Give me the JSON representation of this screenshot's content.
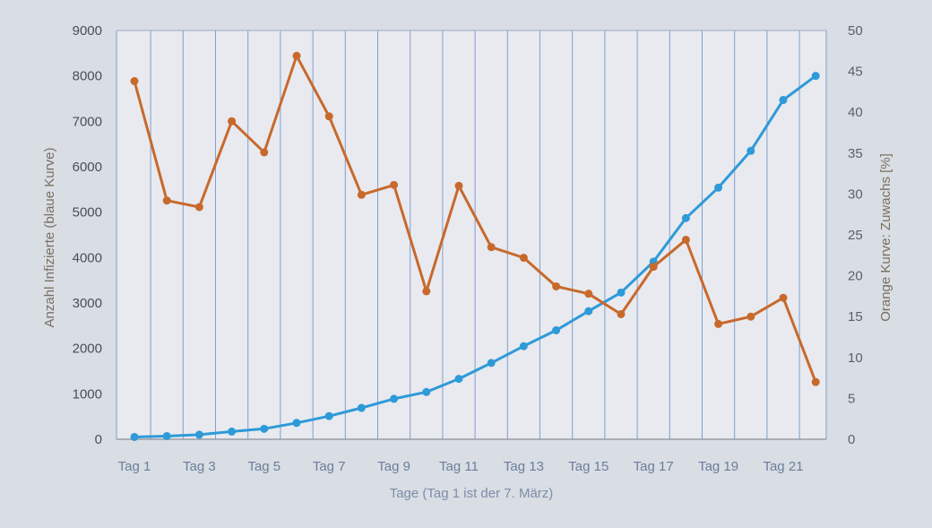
{
  "chart_data": {
    "type": "line",
    "xlabel": "Tage (Tag 1 ist der 7. März)",
    "ylabel": "Anzahl Infizierte (blaue Kurve)",
    "y2label": "Orange Kurve: Zuwachs [%]",
    "categories": [
      "Tag 1",
      "Tag 2",
      "Tag 3",
      "Tag 4",
      "Tag 5",
      "Tag 6",
      "Tag 7",
      "Tag 8",
      "Tag 9",
      "Tag 10",
      "Tag 11",
      "Tag 12",
      "Tag 13",
      "Tag 14",
      "Tag 15",
      "Tag 16",
      "Tag 17",
      "Tag 18",
      "Tag 19",
      "Tag 20",
      "Tag 21",
      "Tag 22"
    ],
    "x_tick_labels": [
      "Tag 1",
      "Tag 3",
      "Tag 5",
      "Tag 7",
      "Tag 9",
      "Tag 11",
      "Tag 13",
      "Tag 15",
      "Tag 17",
      "Tag 19",
      "Tag 21"
    ],
    "ylim": [
      0,
      9000
    ],
    "y_ticks": [
      "0",
      "1000",
      "2000",
      "3000",
      "4000",
      "5000",
      "6000",
      "7000",
      "8000",
      "9000"
    ],
    "y2lim": [
      0,
      50
    ],
    "y2_ticks": [
      "0",
      "5",
      "10",
      "15",
      "20",
      "25",
      "30",
      "35",
      "40",
      "45",
      "50"
    ],
    "grid": "vertical",
    "series": [
      {
        "axis": "left",
        "color": "#2e9ad8",
        "values": [
          50,
          70,
          100,
          170,
          230,
          360,
          510,
          690,
          890,
          1040,
          1330,
          1680,
          2050,
          2400,
          2820,
          3230,
          3910,
          4870,
          5540,
          6350,
          7470,
          8000
        ]
      },
      {
        "axis": "right",
        "color": "#c8692c",
        "values": [
          43.8,
          29.2,
          28.4,
          38.9,
          35.1,
          46.9,
          39.5,
          29.9,
          31.1,
          18.1,
          31.0,
          23.5,
          22.2,
          18.7,
          17.8,
          15.3,
          21.1,
          24.4,
          14.1,
          15.0,
          17.3,
          7.0
        ]
      }
    ]
  }
}
